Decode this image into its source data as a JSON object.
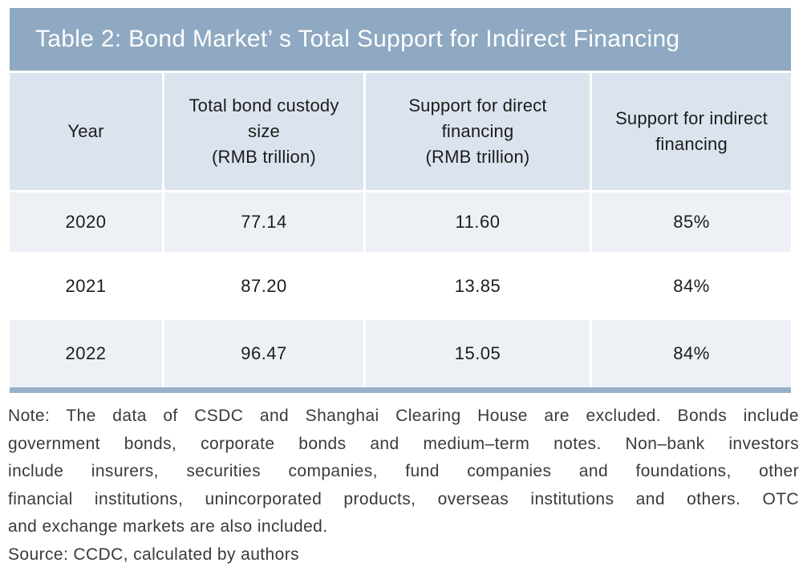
{
  "colors": {
    "title_bar": "#8EA9C1",
    "header_row": "#DBE4EE",
    "alt_row": "#EDF1F6",
    "white_row": "#FFFFFF",
    "bottom_strip": "#96B1C8",
    "title_text": "#FFFFFF",
    "cell_text": "#1C1C1C",
    "note_text": "#3A3A3A"
  },
  "table": {
    "title": "Table 2: Bond Market’ s Total Support for Indirect Financing",
    "headers": [
      {
        "lines": [
          "Year"
        ]
      },
      {
        "lines": [
          "Total bond custody",
          "size",
          "(RMB trillion)"
        ]
      },
      {
        "lines": [
          "Support for direct",
          "financing",
          "(RMB trillion)"
        ]
      },
      {
        "lines": [
          "Support for indirect",
          "financing"
        ]
      }
    ],
    "rows": [
      {
        "cells": [
          "2020",
          "77.14",
          "11.60",
          "85%"
        ]
      },
      {
        "cells": [
          "2021",
          "87.20",
          "13.85",
          "84%"
        ]
      },
      {
        "cells": [
          "2022",
          "96.47",
          "15.05",
          "84%"
        ]
      }
    ]
  },
  "note": {
    "lines": [
      "Note: The data of CSDC and Shanghai Clearing House are excluded. Bonds include",
      "government bonds, corporate bonds and medium–term notes. Non–bank investors",
      "include insurers, securities companies, fund companies and foundations, other",
      "financial institutions, unincorporated products, overseas institutions and others. OTC",
      "and exchange markets are also included."
    ],
    "source": "Source: CCDC, calculated by authors"
  },
  "chart_data": {
    "type": "table",
    "title": "Table 2: Bond Market’s Total Support for Indirect Financing",
    "columns": [
      "Year",
      "Total bond custody size (RMB trillion)",
      "Support for direct financing (RMB trillion)",
      "Support for indirect financing"
    ],
    "rows": [
      [
        "2020",
        77.14,
        11.6,
        "85%"
      ],
      [
        "2021",
        87.2,
        13.85,
        "84%"
      ],
      [
        "2022",
        96.47,
        15.05,
        "84%"
      ]
    ],
    "note": "Note: The data of CSDC and Shanghai Clearing House are excluded. Bonds include government bonds, corporate bonds and medium–term notes. Non–bank investors include insurers, securities companies, fund companies and foundations, other financial institutions, unincorporated products, overseas institutions and others. OTC and exchange markets are also included.",
    "source": "Source: CCDC, calculated by authors"
  }
}
